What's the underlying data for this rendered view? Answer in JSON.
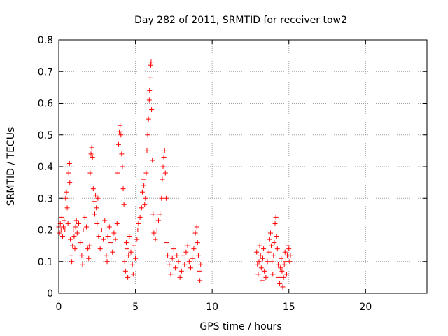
{
  "chart_data": {
    "type": "scatter",
    "title": "Day 282 of 2011, SRMTID for receiver tow2",
    "xlabel": "GPS time / hours",
    "ylabel": "SRMTID / TECUs",
    "xlim": [
      0,
      24
    ],
    "ylim": [
      0,
      0.8
    ],
    "xticks": [
      0,
      5,
      10,
      15,
      20
    ],
    "yticks": [
      0,
      0.1,
      0.2,
      0.3,
      0.4,
      0.5,
      0.6,
      0.7,
      0.8
    ],
    "ytick_labels": [
      "0",
      "0.1",
      "0.2",
      "0.3",
      "0.4",
      "0.5",
      "0.6",
      "0.7",
      "0.8"
    ],
    "grid": true,
    "marker": "+",
    "color": "#ff0000",
    "series": [
      {
        "name": "SRMTID",
        "points": [
          [
            0.0,
            0.21
          ],
          [
            0.05,
            0.19
          ],
          [
            0.1,
            0.22
          ],
          [
            0.15,
            0.2
          ],
          [
            0.2,
            0.24
          ],
          [
            0.25,
            0.18
          ],
          [
            0.3,
            0.21
          ],
          [
            0.35,
            0.23
          ],
          [
            0.4,
            0.2
          ],
          [
            0.45,
            0.3
          ],
          [
            0.5,
            0.32
          ],
          [
            0.55,
            0.27
          ],
          [
            0.6,
            0.22
          ],
          [
            0.65,
            0.38
          ],
          [
            0.7,
            0.41
          ],
          [
            0.72,
            0.35
          ],
          [
            0.75,
            0.17
          ],
          [
            0.8,
            0.12
          ],
          [
            0.85,
            0.1
          ],
          [
            0.9,
            0.15
          ],
          [
            0.95,
            0.2
          ],
          [
            1.0,
            0.18
          ],
          [
            1.05,
            0.14
          ],
          [
            1.1,
            0.21
          ],
          [
            1.15,
            0.23
          ],
          [
            1.2,
            0.19
          ],
          [
            1.3,
            0.22
          ],
          [
            1.4,
            0.16
          ],
          [
            1.5,
            0.12
          ],
          [
            1.55,
            0.09
          ],
          [
            1.6,
            0.2
          ],
          [
            1.7,
            0.24
          ],
          [
            1.8,
            0.21
          ],
          [
            1.9,
            0.14
          ],
          [
            1.95,
            0.11
          ],
          [
            2.0,
            0.15
          ],
          [
            2.05,
            0.38
          ],
          [
            2.1,
            0.44
          ],
          [
            2.15,
            0.46
          ],
          [
            2.2,
            0.43
          ],
          [
            2.25,
            0.33
          ],
          [
            2.3,
            0.29
          ],
          [
            2.35,
            0.25
          ],
          [
            2.4,
            0.31
          ],
          [
            2.45,
            0.27
          ],
          [
            2.5,
            0.22
          ],
          [
            2.55,
            0.3
          ],
          [
            2.6,
            0.18
          ],
          [
            2.7,
            0.14
          ],
          [
            2.8,
            0.2
          ],
          [
            2.9,
            0.17
          ],
          [
            3.0,
            0.23
          ],
          [
            3.1,
            0.12
          ],
          [
            3.15,
            0.1
          ],
          [
            3.2,
            0.18
          ],
          [
            3.3,
            0.21
          ],
          [
            3.4,
            0.16
          ],
          [
            3.5,
            0.13
          ],
          [
            3.6,
            0.19
          ],
          [
            3.7,
            0.17
          ],
          [
            3.8,
            0.22
          ],
          [
            3.85,
            0.38
          ],
          [
            3.9,
            0.47
          ],
          [
            3.95,
            0.51
          ],
          [
            4.0,
            0.53
          ],
          [
            4.05,
            0.5
          ],
          [
            4.1,
            0.44
          ],
          [
            4.15,
            0.4
          ],
          [
            4.2,
            0.33
          ],
          [
            4.25,
            0.28
          ],
          [
            4.3,
            0.1
          ],
          [
            4.35,
            0.07
          ],
          [
            4.4,
            0.16
          ],
          [
            4.45,
            0.14
          ],
          [
            4.5,
            0.05
          ],
          [
            4.55,
            0.12
          ],
          [
            4.6,
            0.18
          ],
          [
            4.7,
            0.13
          ],
          [
            4.8,
            0.09
          ],
          [
            4.85,
            0.06
          ],
          [
            4.9,
            0.15
          ],
          [
            5.0,
            0.11
          ],
          [
            5.1,
            0.17
          ],
          [
            5.15,
            0.2
          ],
          [
            5.2,
            0.22
          ],
          [
            5.3,
            0.24
          ],
          [
            5.4,
            0.27
          ],
          [
            5.45,
            0.32
          ],
          [
            5.5,
            0.36
          ],
          [
            5.55,
            0.34
          ],
          [
            5.6,
            0.28
          ],
          [
            5.65,
            0.3
          ],
          [
            5.7,
            0.38
          ],
          [
            5.75,
            0.45
          ],
          [
            5.8,
            0.5
          ],
          [
            5.85,
            0.55
          ],
          [
            5.9,
            0.61
          ],
          [
            5.92,
            0.64
          ],
          [
            5.95,
            0.68
          ],
          [
            6.0,
            0.72
          ],
          [
            6.02,
            0.73
          ],
          [
            6.05,
            0.58
          ],
          [
            6.1,
            0.42
          ],
          [
            6.15,
            0.25
          ],
          [
            6.2,
            0.19
          ],
          [
            6.3,
            0.17
          ],
          [
            6.4,
            0.2
          ],
          [
            6.5,
            0.23
          ],
          [
            6.6,
            0.25
          ],
          [
            6.7,
            0.3
          ],
          [
            6.75,
            0.36
          ],
          [
            6.8,
            0.4
          ],
          [
            6.85,
            0.43
          ],
          [
            6.9,
            0.45
          ],
          [
            6.95,
            0.38
          ],
          [
            7.0,
            0.3
          ],
          [
            7.05,
            0.16
          ],
          [
            7.1,
            0.12
          ],
          [
            7.2,
            0.09
          ],
          [
            7.3,
            0.06
          ],
          [
            7.4,
            0.11
          ],
          [
            7.5,
            0.14
          ],
          [
            7.6,
            0.08
          ],
          [
            7.7,
            0.12
          ],
          [
            7.8,
            0.1
          ],
          [
            7.9,
            0.05
          ],
          [
            8.0,
            0.07
          ],
          [
            8.1,
            0.12
          ],
          [
            8.2,
            0.09
          ],
          [
            8.3,
            0.13
          ],
          [
            8.4,
            0.15
          ],
          [
            8.5,
            0.1
          ],
          [
            8.6,
            0.08
          ],
          [
            8.7,
            0.11
          ],
          [
            8.8,
            0.14
          ],
          [
            8.9,
            0.19
          ],
          [
            9.0,
            0.21
          ],
          [
            9.05,
            0.16
          ],
          [
            9.1,
            0.12
          ],
          [
            9.15,
            0.07
          ],
          [
            9.2,
            0.04
          ],
          [
            9.25,
            0.09
          ],
          [
            12.9,
            0.13
          ],
          [
            12.95,
            0.09
          ],
          [
            13.0,
            0.06
          ],
          [
            13.05,
            0.1
          ],
          [
            13.1,
            0.15
          ],
          [
            13.15,
            0.12
          ],
          [
            13.2,
            0.08
          ],
          [
            13.25,
            0.04
          ],
          [
            13.3,
            0.11
          ],
          [
            13.35,
            0.14
          ],
          [
            13.4,
            0.07
          ],
          [
            13.5,
            0.05
          ],
          [
            13.6,
            0.1
          ],
          [
            13.7,
            0.13
          ],
          [
            13.75,
            0.17
          ],
          [
            13.8,
            0.19
          ],
          [
            13.85,
            0.15
          ],
          [
            13.9,
            0.1
          ],
          [
            13.95,
            0.06
          ],
          [
            14.0,
            0.12
          ],
          [
            14.05,
            0.16
          ],
          [
            14.1,
            0.22
          ],
          [
            14.15,
            0.24
          ],
          [
            14.2,
            0.18
          ],
          [
            14.25,
            0.14
          ],
          [
            14.3,
            0.09
          ],
          [
            14.35,
            0.05
          ],
          [
            14.4,
            0.03
          ],
          [
            14.45,
            0.08
          ],
          [
            14.5,
            0.11
          ],
          [
            14.55,
            0.07
          ],
          [
            14.6,
            0.02
          ],
          [
            14.65,
            0.05
          ],
          [
            14.7,
            0.09
          ],
          [
            14.75,
            0.13
          ],
          [
            14.8,
            0.1
          ],
          [
            14.85,
            0.06
          ],
          [
            14.9,
            0.12
          ],
          [
            14.95,
            0.15
          ],
          [
            15.0,
            0.14
          ],
          [
            15.05,
            0.1
          ],
          [
            15.1,
            0.12
          ]
        ]
      }
    ]
  }
}
